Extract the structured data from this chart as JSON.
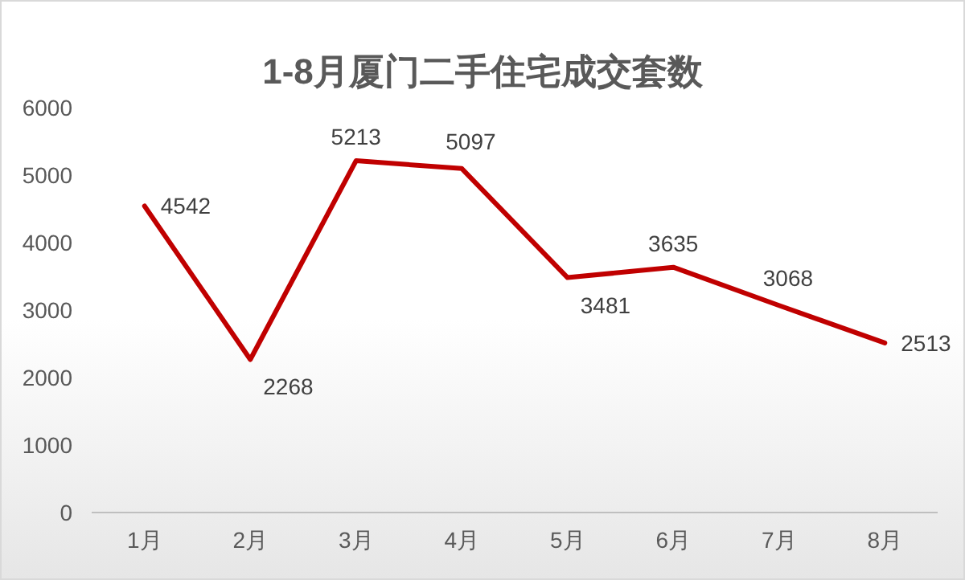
{
  "chart_data": {
    "type": "line",
    "title": "1-8月厦门二手住宅成交套数",
    "categories": [
      "1月",
      "2月",
      "3月",
      "4月",
      "5月",
      "6月",
      "7月",
      "8月"
    ],
    "series": [
      {
        "color": "#c00000",
        "values": [
          4542,
          2268,
          5213,
          5097,
          3481,
          3635,
          3068,
          2513
        ]
      }
    ],
    "ylim": [
      0,
      6000
    ],
    "yticks": [
      0,
      1000,
      2000,
      3000,
      4000,
      5000,
      6000
    ],
    "data_labels": true,
    "marker": "none",
    "line_style": "solid"
  }
}
